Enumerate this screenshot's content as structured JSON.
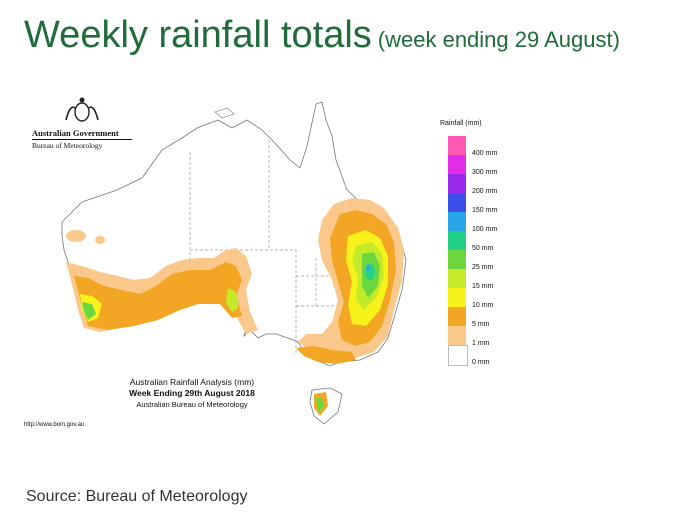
{
  "title": {
    "main": "Weekly rainfall totals",
    "sub": "(week ending 29 August)"
  },
  "logo": {
    "line1": "Australian Government",
    "line2": "Bureau of Meteorology"
  },
  "map": {
    "caption_line1": "Australian Rainfall Analysis (mm)",
    "caption_line2": "Week Ending 29th August 2018",
    "caption_line3": "Australian Bureau of Meteorology",
    "url": "http://www.bom.gov.au"
  },
  "legend": {
    "title": "Rainfall (mm)",
    "items": [
      {
        "label": "400 mm",
        "color": "#ff59b4"
      },
      {
        "label": "300 mm",
        "color": "#e12ee6"
      },
      {
        "label": "200 mm",
        "color": "#9b2be8"
      },
      {
        "label": "150 mm",
        "color": "#3a4ee8"
      },
      {
        "label": "100 mm",
        "color": "#2aa6e8"
      },
      {
        "label": "50 mm",
        "color": "#22d08a"
      },
      {
        "label": "25 mm",
        "color": "#6cd63e"
      },
      {
        "label": "15 mm",
        "color": "#c5ea2a"
      },
      {
        "label": "10 mm",
        "color": "#f6f21a"
      },
      {
        "label": "5 mm",
        "color": "#f2a623"
      },
      {
        "label": "1 mm",
        "color": "#f9c88a"
      },
      {
        "label": "0 mm",
        "color": "#ffffff"
      }
    ]
  },
  "source": "Source: Bureau of Meteorology"
}
